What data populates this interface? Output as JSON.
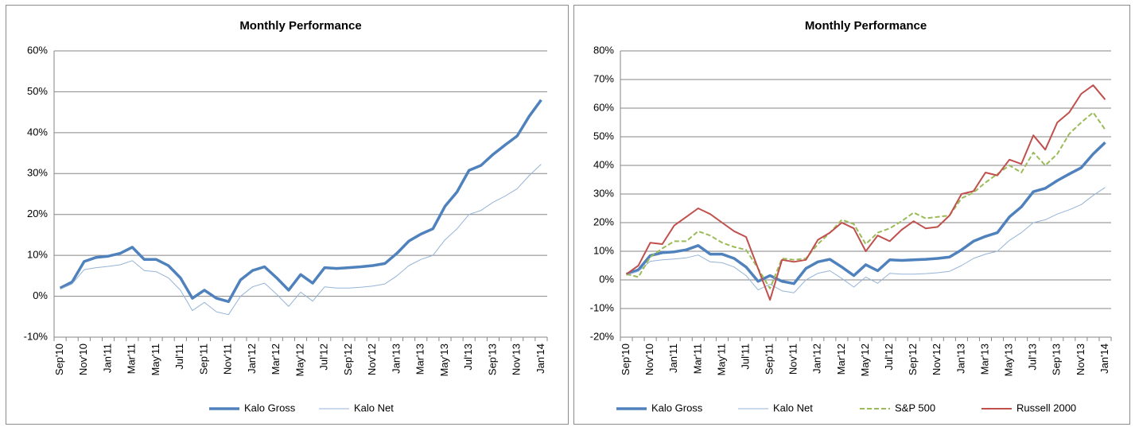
{
  "chart_data": [
    {
      "type": "line",
      "title": "Monthly Performance",
      "categories": [
        "Sep'10",
        null,
        "Nov'10",
        null,
        "Jan'11",
        null,
        "Mar'11",
        null,
        "May'11",
        null,
        "Jul'11",
        null,
        "Sep'11",
        null,
        "Nov'11",
        null,
        "Jan'12",
        null,
        "Mar'12",
        null,
        "May'12",
        null,
        "Jul'12",
        null,
        "Sep'12",
        null,
        "Nov'12",
        null,
        "Jan'13",
        null,
        "Mar'13",
        null,
        "May'13",
        null,
        "Jul'13",
        null,
        "Sep'13",
        null,
        "Nov'13",
        null,
        "Jan'14"
      ],
      "series": [
        {
          "name": "Kalo Gross",
          "color": "#4f81bd",
          "values": [
            2,
            3.5,
            8.5,
            9.5,
            9.8,
            10.5,
            12,
            9,
            9,
            7.5,
            4.5,
            -0.5,
            1.5,
            -0.5,
            -1.3,
            4,
            6.3,
            7.2,
            4.5,
            1.5,
            5.3,
            3.2,
            7,
            6.8,
            7,
            7.2,
            7.5,
            8,
            10.5,
            13.5,
            15.2,
            16.5,
            22,
            25.5,
            30.8,
            32,
            34.7,
            37,
            39.2,
            44,
            48
          ]
        },
        {
          "name": "Kalo Net",
          "color": "#95b3d7",
          "values": [
            1.7,
            3,
            6.5,
            7,
            7.3,
            7.7,
            8.7,
            6.3,
            6,
            4.5,
            1.5,
            -3.5,
            -1.5,
            -3.8,
            -4.5,
            0,
            2.3,
            3.2,
            0.5,
            -2.5,
            1,
            -1.2,
            2.3,
            2,
            2,
            2.2,
            2.5,
            3,
            5,
            7.5,
            9,
            10,
            13.8,
            16.5,
            20,
            21,
            23,
            24.5,
            26.3,
            29.5,
            32.3
          ]
        }
      ],
      "ylim": [
        -10,
        60
      ],
      "yticks": [
        {
          "value": -10,
          "label": "-10%"
        },
        {
          "value": 0,
          "label": "0%"
        },
        {
          "value": 10,
          "label": "10%"
        },
        {
          "value": 20,
          "label": "20%"
        },
        {
          "value": 30,
          "label": "30%"
        },
        {
          "value": 40,
          "label": "40%"
        },
        {
          "value": 50,
          "label": "50%"
        },
        {
          "value": 60,
          "label": "60%"
        }
      ],
      "grid": true,
      "legend": "bottom"
    },
    {
      "type": "line",
      "title": "Monthly Performance",
      "categories": [
        "Sep'10",
        null,
        "Nov'10",
        null,
        "Jan'11",
        null,
        "Mar'11",
        null,
        "May'11",
        null,
        "Jul'11",
        null,
        "Sep'11",
        null,
        "Nov'11",
        null,
        "Jan'12",
        null,
        "Mar'12",
        null,
        "May'12",
        null,
        "Jul'12",
        null,
        "Sep'12",
        null,
        "Nov'12",
        null,
        "Jan'13",
        null,
        "Mar'13",
        null,
        "May'13",
        null,
        "Jul'13",
        null,
        "Sep'13",
        null,
        "Nov'13",
        null,
        "Jan'14"
      ],
      "series": [
        {
          "name": "Kalo Gross",
          "color": "#4f81bd",
          "values": [
            2,
            3.5,
            8.5,
            9.5,
            9.8,
            10.5,
            12,
            9,
            9,
            7.5,
            4.5,
            -0.5,
            1.5,
            -0.5,
            -1.3,
            4,
            6.3,
            7.2,
            4.5,
            1.5,
            5.3,
            3.2,
            7,
            6.8,
            7,
            7.2,
            7.5,
            8,
            10.5,
            13.5,
            15.2,
            16.5,
            22,
            25.5,
            30.8,
            32,
            34.7,
            37,
            39.2,
            44,
            48
          ]
        },
        {
          "name": "Kalo Net",
          "color": "#95b3d7",
          "values": [
            1.7,
            3,
            6.5,
            7,
            7.3,
            7.7,
            8.7,
            6.3,
            6,
            4.5,
            1.5,
            -3.5,
            -1.5,
            -3.8,
            -4.5,
            0,
            2.3,
            3.2,
            0.5,
            -2.5,
            1,
            -1.2,
            2.3,
            2,
            2,
            2.2,
            2.5,
            3,
            5,
            7.5,
            9,
            10,
            13.8,
            16.5,
            20,
            21,
            23,
            24.5,
            26.3,
            29.5,
            32.3
          ]
        },
        {
          "name": "S&P 500",
          "color": "#9bbb59",
          "dash": true,
          "values": [
            2,
            1,
            8,
            11,
            13.5,
            13.5,
            17,
            15.5,
            13,
            11.5,
            10.5,
            4,
            -3,
            7.5,
            7,
            7.5,
            12.5,
            16.5,
            21,
            19.5,
            12.5,
            16.5,
            18,
            20.5,
            23.5,
            21.5,
            22,
            22.5,
            28.5,
            30.5,
            34,
            37,
            40,
            37.5,
            44.5,
            40,
            44,
            51,
            55,
            58.5,
            52.5
          ]
        },
        {
          "name": "Russell 2000",
          "color": "#c0504d",
          "values": [
            2,
            5,
            13,
            12.5,
            19,
            22,
            25,
            23,
            20,
            17,
            15,
            4,
            -7,
            7,
            6.3,
            7,
            14,
            16.5,
            20,
            18,
            10,
            15.5,
            13.5,
            17.5,
            20.5,
            18,
            18.5,
            22.5,
            30,
            31,
            37.5,
            36.5,
            42,
            40.5,
            50.5,
            45.5,
            55,
            58.5,
            65,
            68,
            63
          ]
        }
      ],
      "ylim": [
        -20,
        80
      ],
      "yticks": [
        {
          "value": -20,
          "label": "-20%"
        },
        {
          "value": -10,
          "label": "-10%"
        },
        {
          "value": 0,
          "label": "0%"
        },
        {
          "value": 10,
          "label": "10%"
        },
        {
          "value": 20,
          "label": "20%"
        },
        {
          "value": 30,
          "label": "30%"
        },
        {
          "value": 40,
          "label": "40%"
        },
        {
          "value": 50,
          "label": "50%"
        },
        {
          "value": 60,
          "label": "60%"
        },
        {
          "value": 70,
          "label": "70%"
        },
        {
          "value": 80,
          "label": "80%"
        }
      ],
      "grid": true,
      "legend": "bottom"
    }
  ]
}
